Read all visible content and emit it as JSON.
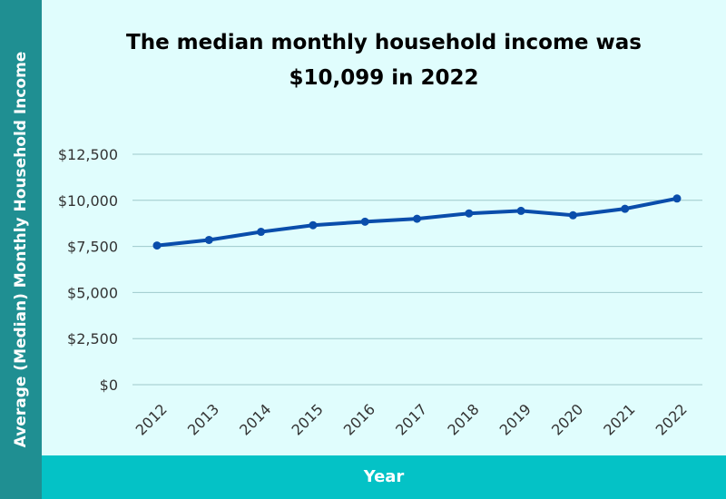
{
  "chart_data": {
    "type": "line",
    "title_line1": "The median monthly household income was",
    "title_line2": "$10,099 in 2022",
    "xlabel": "Year",
    "ylabel": "Average (Median) Monthly Household Income",
    "categories": [
      "2012",
      "2013",
      "2014",
      "2015",
      "2016",
      "2017",
      "2018",
      "2019",
      "2020",
      "2021",
      "2022"
    ],
    "series": [
      {
        "values": [
          7550,
          7850,
          8290,
          8650,
          8840,
          9000,
          9290,
          9430,
          9190,
          9540,
          10099
        ]
      }
    ],
    "yticks": [
      "$0",
      "$2,500",
      "$5,000",
      "$7,500",
      "$10,000",
      "$12,500"
    ],
    "ytick_values": [
      0,
      2500,
      5000,
      7500,
      10000,
      12500
    ],
    "ylim": [
      0,
      12500
    ],
    "grid": true,
    "line_color": "#0a4dab",
    "grid_color": "#9ec9cc"
  }
}
